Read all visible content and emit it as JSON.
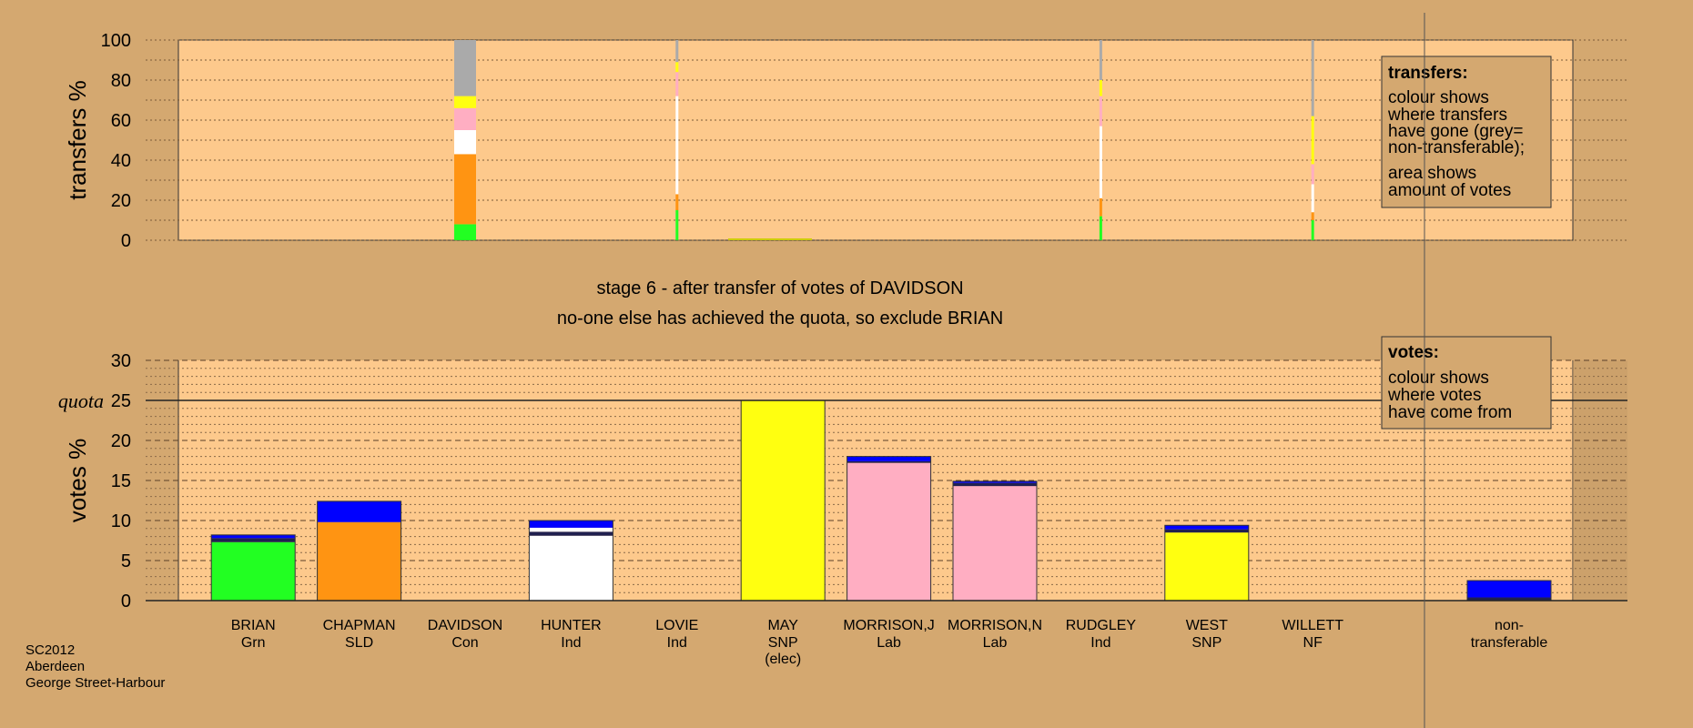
{
  "colors": {
    "background": "#d4a870",
    "plot_background": "#fdc98c",
    "green": "#22ff22",
    "orange": "#ff9412",
    "white": "#ffffff",
    "yellow": "#ffff10",
    "pink": "#ffaec2",
    "blue": "#0000ff",
    "navy": "#202050",
    "grey": "#aaaaaa"
  },
  "texts": {
    "stage_title": "stage 6 - after transfer of votes of DAVIDSON",
    "stage_subtitle": "no-one else has achieved the quota, so exclude BRIAN",
    "quota_label": "quota",
    "footer_line1": "SC2012",
    "footer_line2": "Aberdeen",
    "footer_line3": "George Street-Harbour"
  },
  "legends": {
    "transfers_title": "transfers:",
    "transfers_lines": [
      "colour shows",
      "where transfers",
      "have gone (grey=",
      "non-transferable);"
    ],
    "transfers_lines2": [
      "area shows",
      "amount of votes"
    ],
    "votes_title": "votes:",
    "votes_lines": [
      "colour shows",
      "where votes",
      "have come from"
    ]
  },
  "chart_data": [
    {
      "type": "bar",
      "title": "",
      "ylabel": "transfers %",
      "ylim": [
        0,
        100
      ],
      "yticks": [
        "0",
        "20",
        "40",
        "60",
        "80",
        "100"
      ],
      "categories": [
        "BRIAN",
        "CHAPMAN",
        "DAVIDSON",
        "HUNTER",
        "LOVIE",
        "MAY",
        "MORRISON,J",
        "MORRISON,N",
        "RUDGLEY",
        "WEST",
        "WILLETT"
      ],
      "transfer_bars": [
        {
          "candidate": "DAVIDSON",
          "width": "wide",
          "segments": [
            {
              "color": "green",
              "from": 0,
              "to": 8
            },
            {
              "color": "orange",
              "from": 8,
              "to": 43
            },
            {
              "color": "white",
              "from": 43,
              "to": 55
            },
            {
              "color": "pink",
              "from": 55,
              "to": 66
            },
            {
              "color": "yellow",
              "from": 66,
              "to": 72
            },
            {
              "color": "grey",
              "from": 72,
              "to": 100
            }
          ]
        },
        {
          "candidate": "LOVIE",
          "width": "thin",
          "segments": [
            {
              "color": "green",
              "from": 0,
              "to": 15
            },
            {
              "color": "orange",
              "from": 15,
              "to": 23
            },
            {
              "color": "white",
              "from": 23,
              "to": 72
            },
            {
              "color": "pink",
              "from": 72,
              "to": 84
            },
            {
              "color": "yellow",
              "from": 84,
              "to": 89
            },
            {
              "color": "grey",
              "from": 89,
              "to": 100
            }
          ]
        },
        {
          "candidate": "RUDGLEY",
          "width": "thin",
          "segments": [
            {
              "color": "green",
              "from": 0,
              "to": 12
            },
            {
              "color": "orange",
              "from": 12,
              "to": 21
            },
            {
              "color": "white",
              "from": 21,
              "to": 57
            },
            {
              "color": "pink",
              "from": 57,
              "to": 72
            },
            {
              "color": "yellow",
              "from": 72,
              "to": 80
            },
            {
              "color": "grey",
              "from": 80,
              "to": 100
            }
          ]
        },
        {
          "candidate": "WILLETT",
          "width": "thin",
          "segments": [
            {
              "color": "green",
              "from": 0,
              "to": 10
            },
            {
              "color": "orange",
              "from": 10,
              "to": 14
            },
            {
              "color": "white",
              "from": 14,
              "to": 28
            },
            {
              "color": "pink",
              "from": 28,
              "to": 38
            },
            {
              "color": "yellow",
              "from": 38,
              "to": 62
            },
            {
              "color": "grey",
              "from": 62,
              "to": 100
            }
          ]
        }
      ]
    },
    {
      "type": "bar",
      "title": "",
      "ylabel": "votes %",
      "ylim": [
        0,
        30
      ],
      "yticks": [
        "0",
        "5",
        "10",
        "15",
        "20",
        "25",
        "30"
      ],
      "quota": 25,
      "candidates": [
        {
          "name": "BRIAN",
          "party": "Grn",
          "elected": "",
          "segments": [
            {
              "color": "green",
              "value": 7.3
            },
            {
              "color": "navy",
              "value": 0.5
            },
            {
              "color": "blue",
              "value": 0.4
            }
          ]
        },
        {
          "name": "CHAPMAN",
          "party": "SLD",
          "elected": "",
          "segments": [
            {
              "color": "orange",
              "value": 9.8
            },
            {
              "color": "blue",
              "value": 2.6
            }
          ]
        },
        {
          "name": "DAVIDSON",
          "party": "Con",
          "elected": "",
          "segments": []
        },
        {
          "name": "HUNTER",
          "party": "Ind",
          "elected": "",
          "segments": [
            {
              "color": "white",
              "value": 8.1
            },
            {
              "color": "navy",
              "value": 0.5
            },
            {
              "color": "white",
              "value": 0.5
            },
            {
              "color": "blue",
              "value": 0.9
            }
          ]
        },
        {
          "name": "LOVIE",
          "party": "Ind",
          "elected": "",
          "segments": []
        },
        {
          "name": "MAY",
          "party": "SNP",
          "elected": "(elec)",
          "segments": [
            {
              "color": "yellow",
              "value": 25.0
            }
          ]
        },
        {
          "name": "MORRISON,J",
          "party": "Lab",
          "elected": "",
          "segments": [
            {
              "color": "pink",
              "value": 17.2
            },
            {
              "color": "navy",
              "value": 0.2
            },
            {
              "color": "blue",
              "value": 0.6
            }
          ]
        },
        {
          "name": "MORRISON,N",
          "party": "Lab",
          "elected": "",
          "segments": [
            {
              "color": "pink",
              "value": 14.3
            },
            {
              "color": "navy",
              "value": 0.4
            },
            {
              "color": "blue",
              "value": 0.2
            }
          ]
        },
        {
          "name": "RUDGLEY",
          "party": "Ind",
          "elected": "",
          "segments": []
        },
        {
          "name": "WEST",
          "party": "SNP",
          "elected": "",
          "segments": [
            {
              "color": "yellow",
              "value": 8.5
            },
            {
              "color": "navy",
              "value": 0.4
            },
            {
              "color": "blue",
              "value": 0.5
            }
          ]
        },
        {
          "name": "WILLETT",
          "party": "NF",
          "elected": "",
          "segments": []
        }
      ],
      "nontransferable": {
        "line1": "non-",
        "line2": "transferable",
        "segments": [
          {
            "color": "navy",
            "value": 0.4
          },
          {
            "color": "blue",
            "value": 2.1
          }
        ]
      }
    }
  ]
}
